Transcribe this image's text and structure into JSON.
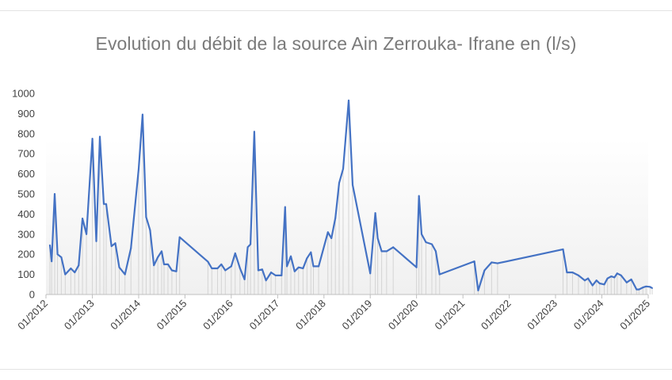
{
  "chart_data": {
    "type": "line",
    "title": "Evolution du débit de la source Ain Zerrouka- Ifrane en (l/s)",
    "xlabel": "",
    "ylabel": "",
    "ylim": [
      0,
      1000
    ],
    "yticks": [
      "0",
      "100",
      "200",
      "300",
      "400",
      "500",
      "600",
      "700",
      "800",
      "900",
      "1000"
    ],
    "xlim": [
      "2012-01-01",
      "2025-01-01"
    ],
    "xticks": [
      "01/2012",
      "01/2013",
      "01/2014",
      "01/2015",
      "01/2016",
      "01/2017",
      "01/2018",
      "01/2019",
      "01/2020",
      "01/2021",
      "01/2022",
      "01/2023",
      "01/2024",
      "01/2025"
    ],
    "grid": false,
    "legend": "none",
    "line_color": "#4472c4",
    "series": [
      {
        "points": [
          [
            "2012-02-01",
            245
          ],
          [
            "2012-02-15",
            165
          ],
          [
            "2012-03-10",
            500
          ],
          [
            "2012-04-01",
            200
          ],
          [
            "2012-05-01",
            185
          ],
          [
            "2012-06-01",
            100
          ],
          [
            "2012-07-15",
            130
          ],
          [
            "2012-08-15",
            110
          ],
          [
            "2012-09-15",
            145
          ],
          [
            "2012-10-15",
            378
          ],
          [
            "2012-11-15",
            300
          ],
          [
            "2013-01-01",
            775
          ],
          [
            "2013-02-01",
            265
          ],
          [
            "2013-03-01",
            785
          ],
          [
            "2013-04-01",
            450
          ],
          [
            "2013-04-20",
            450
          ],
          [
            "2013-06-01",
            240
          ],
          [
            "2013-07-01",
            255
          ],
          [
            "2013-08-01",
            135
          ],
          [
            "2013-09-15",
            100
          ],
          [
            "2013-11-01",
            230
          ],
          [
            "2014-01-01",
            625
          ],
          [
            "2014-02-01",
            895
          ],
          [
            "2014-03-01",
            385
          ],
          [
            "2014-04-01",
            320
          ],
          [
            "2014-05-01",
            145
          ],
          [
            "2014-06-01",
            185
          ],
          [
            "2014-07-01",
            215
          ],
          [
            "2014-07-20",
            150
          ],
          [
            "2014-08-20",
            150
          ],
          [
            "2014-09-20",
            120
          ],
          [
            "2014-10-25",
            115
          ],
          [
            "2014-11-20",
            285
          ],
          [
            "2015-07-01",
            163
          ],
          [
            "2015-08-01",
            130
          ],
          [
            "2015-09-15",
            130
          ],
          [
            "2015-10-15",
            150
          ],
          [
            "2015-11-15",
            120
          ],
          [
            "2016-01-01",
            140
          ],
          [
            "2016-02-01",
            205
          ],
          [
            "2016-03-10",
            130
          ],
          [
            "2016-04-15",
            75
          ],
          [
            "2016-05-10",
            235
          ],
          [
            "2016-06-01",
            250
          ],
          [
            "2016-07-01",
            810
          ],
          [
            "2016-08-01",
            120
          ],
          [
            "2016-09-01",
            125
          ],
          [
            "2016-10-01",
            70
          ],
          [
            "2016-11-10",
            110
          ],
          [
            "2016-12-15",
            95
          ],
          [
            "2017-02-01",
            95
          ],
          [
            "2017-03-01",
            435
          ],
          [
            "2017-03-15",
            140
          ],
          [
            "2017-04-15",
            190
          ],
          [
            "2017-05-15",
            115
          ],
          [
            "2017-06-15",
            135
          ],
          [
            "2017-07-20",
            130
          ],
          [
            "2017-08-20",
            180
          ],
          [
            "2017-09-20",
            210
          ],
          [
            "2017-10-10",
            140
          ],
          [
            "2017-11-20",
            140
          ],
          [
            "2018-02-01",
            310
          ],
          [
            "2018-03-01",
            280
          ],
          [
            "2018-04-01",
            380
          ],
          [
            "2018-05-01",
            555
          ],
          [
            "2018-06-01",
            625
          ],
          [
            "2018-07-15",
            965
          ],
          [
            "2018-08-15",
            545
          ],
          [
            "2019-01-01",
            105
          ],
          [
            "2019-02-10",
            405
          ],
          [
            "2019-03-01",
            280
          ],
          [
            "2019-04-01",
            215
          ],
          [
            "2019-05-10",
            215
          ],
          [
            "2019-07-01",
            235
          ],
          [
            "2020-01-01",
            135
          ],
          [
            "2020-01-20",
            490
          ],
          [
            "2020-02-10",
            300
          ],
          [
            "2020-03-15",
            260
          ],
          [
            "2020-05-01",
            250
          ],
          [
            "2020-06-01",
            215
          ],
          [
            "2020-07-01",
            100
          ],
          [
            "2021-04-01",
            165
          ],
          [
            "2021-05-01",
            20
          ],
          [
            "2021-06-20",
            120
          ],
          [
            "2021-08-15",
            160
          ],
          [
            "2021-10-01",
            155
          ],
          [
            "2023-03-01",
            225
          ],
          [
            "2023-04-01",
            110
          ],
          [
            "2023-05-15",
            110
          ],
          [
            "2023-07-01",
            95
          ],
          [
            "2023-08-20",
            70
          ],
          [
            "2023-09-15",
            80
          ],
          [
            "2023-10-20",
            45
          ],
          [
            "2023-11-20",
            70
          ],
          [
            "2023-12-15",
            55
          ],
          [
            "2024-01-20",
            50
          ],
          [
            "2024-02-15",
            80
          ],
          [
            "2024-03-15",
            90
          ],
          [
            "2024-04-10",
            85
          ],
          [
            "2024-05-01",
            105
          ],
          [
            "2024-06-01",
            95
          ],
          [
            "2024-07-15",
            60
          ],
          [
            "2024-08-20",
            75
          ],
          [
            "2024-10-01",
            25
          ],
          [
            "2024-10-20",
            25
          ],
          [
            "2024-11-20",
            35
          ],
          [
            "2024-12-15",
            40
          ],
          [
            "2025-01-15",
            38
          ],
          [
            "2025-02-01",
            32
          ]
        ]
      }
    ]
  }
}
